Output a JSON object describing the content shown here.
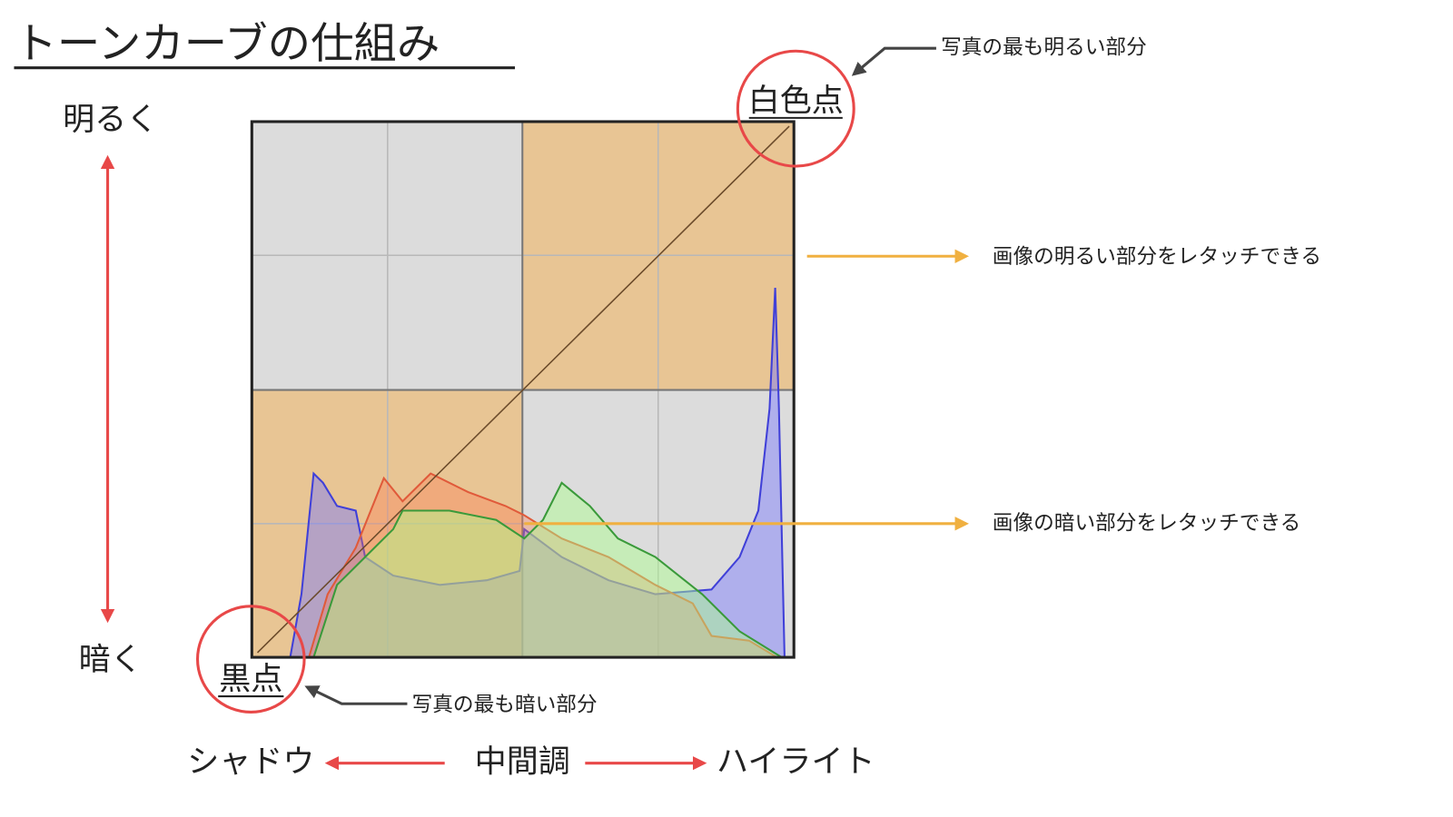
{
  "title": "トーンカーブの仕組み",
  "vertical_axis": {
    "top": "明るく",
    "bottom": "暗く"
  },
  "horizontal_axis": {
    "left": "シャドウ",
    "middle": "中間調",
    "right": "ハイライト"
  },
  "white_point": {
    "label": "白色点",
    "note": "写真の最も明るい部分"
  },
  "black_point": {
    "label": "黒点",
    "note": "写真の最も暗い部分"
  },
  "regions": {
    "bright": "画像の明るい部分をレタッチできる",
    "dark": "画像の暗い部分をレタッチできる"
  }
}
